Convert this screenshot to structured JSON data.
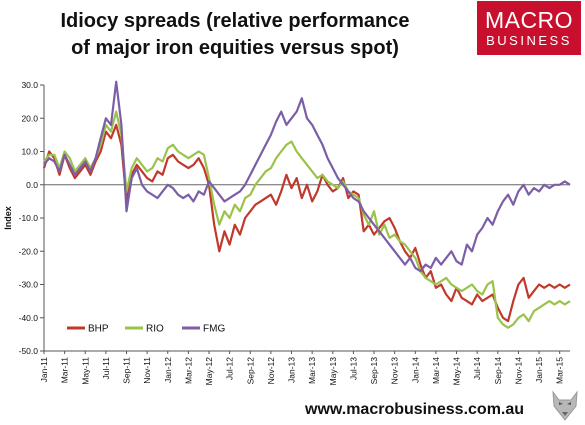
{
  "header": {
    "title_line1": "Idiocy spreads (relative performance",
    "title_line2": "of major iron equities versus spot)",
    "logo_line1": "MACRO",
    "logo_line2": "BUSINESS"
  },
  "footer": {
    "url": "www.macrobusiness.com.au"
  },
  "colors": {
    "logo_bg": "#c8102e",
    "bhp": "#c0392b",
    "rio": "#9bc24a",
    "fmg": "#7b5ea7"
  },
  "chart_data": {
    "type": "line",
    "title": "Idiocy spreads (relative performance of major iron equities versus spot)",
    "ylabel": "Index",
    "xlabel": "",
    "ylim": [
      -50,
      30
    ],
    "yticks": [
      30,
      20,
      10,
      0,
      -10,
      -20,
      -30,
      -40,
      -50
    ],
    "ytick_labels": [
      "30.0",
      "20.0",
      "10.0",
      "0.0",
      "-10.0",
      "-20.0",
      "-30.0",
      "-40.0",
      "-50.0"
    ],
    "xticks": [
      "Jan-11",
      "Mar-11",
      "May-11",
      "Jul-11",
      "Sep-11",
      "Nov-11",
      "Jan-12",
      "Mar-12",
      "May-12",
      "Jul-12",
      "Sep-12",
      "Nov-12",
      "Jan-13",
      "Mar-13",
      "May-13",
      "Jul-13",
      "Sep-13",
      "Nov-13",
      "Jan-14",
      "Mar-14",
      "May-14",
      "Jul-14",
      "Sep-14",
      "Nov-14",
      "Jan-15",
      "Mar-15"
    ],
    "grid": false,
    "legend_position": "bottom-left",
    "series": [
      {
        "name": "BHP",
        "color": "#c0392b",
        "x": [
          0,
          0.5,
          1,
          1.5,
          2,
          2.5,
          3,
          3.5,
          4,
          4.5,
          5,
          5.5,
          6,
          6.5,
          7,
          7.5,
          8,
          8.5,
          9,
          9.5,
          10,
          10.5,
          11,
          11.5,
          12,
          12.5,
          13,
          13.5,
          14,
          14.5,
          15,
          15.5,
          16,
          16.5,
          17,
          17.5,
          18,
          18.5,
          19,
          19.5,
          20,
          20.5,
          21,
          21.5,
          22,
          22.5,
          23,
          23.5,
          24,
          24.5,
          25,
          25.5,
          26,
          26.5,
          27,
          27.5,
          28,
          28.5,
          29,
          29.5,
          30,
          30.5,
          31,
          31.5,
          32,
          32.5,
          33,
          33.5,
          34,
          34.5,
          35,
          35.5,
          36,
          36.5,
          37,
          37.5,
          38,
          38.5,
          39,
          39.5,
          40,
          40.5,
          41,
          41.5,
          42,
          42.5,
          43,
          43.5,
          44,
          44.5,
          45,
          45.5,
          46,
          46.5,
          47,
          47.5,
          48,
          48.5,
          49,
          49.5,
          50,
          50.5,
          51
        ],
        "values": [
          5,
          10,
          8,
          3,
          9,
          5,
          2,
          4,
          6,
          3,
          7,
          10,
          16,
          14,
          18,
          12,
          -5,
          3,
          6,
          4,
          2,
          1,
          4,
          3,
          8,
          9,
          7,
          6,
          5,
          6,
          8,
          5,
          0,
          -12,
          -20,
          -14,
          -18,
          -12,
          -15,
          -10,
          -8,
          -6,
          -5,
          -4,
          -3,
          -6,
          -2,
          3,
          -1,
          2,
          -4,
          0,
          -5,
          -2,
          3,
          0,
          -2,
          -1,
          2,
          -4,
          -2,
          -3,
          -14,
          -12,
          -15,
          -13,
          -11,
          -10,
          -13,
          -17,
          -20,
          -22,
          -19,
          -24,
          -28,
          -26,
          -31,
          -30,
          -33,
          -35,
          -31,
          -34,
          -35,
          -36,
          -33,
          -35,
          -34,
          -33,
          -37,
          -40,
          -41,
          -35,
          -30,
          -28,
          -34,
          -32,
          -30,
          -31,
          -30,
          -31,
          -30,
          -31,
          -30
        ],
        "final_value": -30
      },
      {
        "name": "RIO",
        "color": "#9bc24a",
        "x": [
          0,
          0.5,
          1,
          1.5,
          2,
          2.5,
          3,
          3.5,
          4,
          4.5,
          5,
          5.5,
          6,
          6.5,
          7,
          7.5,
          8,
          8.5,
          9,
          9.5,
          10,
          10.5,
          11,
          11.5,
          12,
          12.5,
          13,
          13.5,
          14,
          14.5,
          15,
          15.5,
          16,
          16.5,
          17,
          17.5,
          18,
          18.5,
          19,
          19.5,
          20,
          20.5,
          21,
          21.5,
          22,
          22.5,
          23,
          23.5,
          24,
          24.5,
          25,
          25.5,
          26,
          26.5,
          27,
          27.5,
          28,
          28.5,
          29,
          29.5,
          30,
          30.5,
          31,
          31.5,
          32,
          32.5,
          33,
          33.5,
          34,
          34.5,
          35,
          35.5,
          36,
          36.5,
          37,
          37.5,
          38,
          38.5,
          39,
          39.5,
          40,
          40.5,
          41,
          41.5,
          42,
          42.5,
          43,
          43.5,
          44,
          44.5,
          45,
          45.5,
          46,
          46.5,
          47,
          47.5,
          48,
          48.5,
          49,
          49.5,
          50,
          50.5,
          51
        ],
        "values": [
          7,
          9,
          9,
          5,
          10,
          8,
          4,
          6,
          8,
          5,
          8,
          12,
          18,
          16,
          22,
          15,
          -2,
          5,
          8,
          6,
          4,
          5,
          8,
          7,
          11,
          12,
          10,
          9,
          8,
          9,
          10,
          9,
          2,
          -6,
          -12,
          -8,
          -10,
          -6,
          -8,
          -4,
          -3,
          0,
          2,
          4,
          5,
          8,
          10,
          12,
          13,
          10,
          8,
          6,
          4,
          2,
          3,
          1,
          0,
          -1,
          1,
          -2,
          -3,
          -4,
          -9,
          -12,
          -8,
          -15,
          -12,
          -16,
          -15,
          -17,
          -18,
          -20,
          -22,
          -26,
          -28,
          -29,
          -30,
          -29,
          -28,
          -30,
          -31,
          -32,
          -31,
          -30,
          -32,
          -33,
          -30,
          -29,
          -40,
          -42,
          -43,
          -42,
          -40,
          -39,
          -41,
          -38,
          -37,
          -36,
          -35,
          -36,
          -35,
          -36,
          -35
        ],
        "final_value": -35
      },
      {
        "name": "FMG",
        "color": "#7b5ea7",
        "x": [
          0,
          0.5,
          1,
          1.5,
          2,
          2.5,
          3,
          3.5,
          4,
          4.5,
          5,
          5.5,
          6,
          6.5,
          7,
          7.5,
          8,
          8.5,
          9,
          9.5,
          10,
          10.5,
          11,
          11.5,
          12,
          12.5,
          13,
          13.5,
          14,
          14.5,
          15,
          15.5,
          16,
          16.5,
          17,
          17.5,
          18,
          18.5,
          19,
          19.5,
          20,
          20.5,
          21,
          21.5,
          22,
          22.5,
          23,
          23.5,
          24,
          24.5,
          25,
          25.5,
          26,
          26.5,
          27,
          27.5,
          28,
          28.5,
          29,
          29.5,
          30,
          30.5,
          31,
          31.5,
          32,
          32.5,
          33,
          33.5,
          34,
          34.5,
          35,
          35.5,
          36,
          36.5,
          37,
          37.5,
          38,
          38.5,
          39,
          39.5,
          40,
          40.5,
          41,
          41.5,
          42,
          42.5,
          43,
          43.5,
          44,
          44.5,
          45,
          45.5,
          46,
          46.5,
          47,
          47.5,
          48,
          48.5,
          49,
          49.5,
          50,
          50.5,
          51
        ],
        "values": [
          6,
          8,
          7,
          4,
          9,
          6,
          3,
          5,
          7,
          4,
          8,
          14,
          20,
          18,
          31,
          18,
          -8,
          2,
          5,
          0,
          -2,
          -3,
          -4,
          -2,
          0,
          -1,
          -3,
          -4,
          -3,
          -5,
          -2,
          -3,
          1,
          -1,
          -3,
          -5,
          -4,
          -3,
          -2,
          0,
          3,
          6,
          9,
          12,
          15,
          19,
          22,
          18,
          20,
          22,
          26,
          20,
          18,
          15,
          12,
          8,
          5,
          2,
          0,
          -2,
          -4,
          -5,
          -8,
          -10,
          -12,
          -14,
          -16,
          -18,
          -20,
          -22,
          -24,
          -22,
          -25,
          -26,
          -24,
          -25,
          -22,
          -24,
          -22,
          -20,
          -23,
          -24,
          -18,
          -20,
          -15,
          -13,
          -10,
          -12,
          -8,
          -5,
          -3,
          -6,
          -2,
          0,
          -3,
          -1,
          -2,
          0,
          -1,
          0,
          0,
          1,
          0
        ],
        "final_value": 0
      }
    ],
    "legend": [
      "BHP",
      "RIO",
      "FMG"
    ]
  }
}
